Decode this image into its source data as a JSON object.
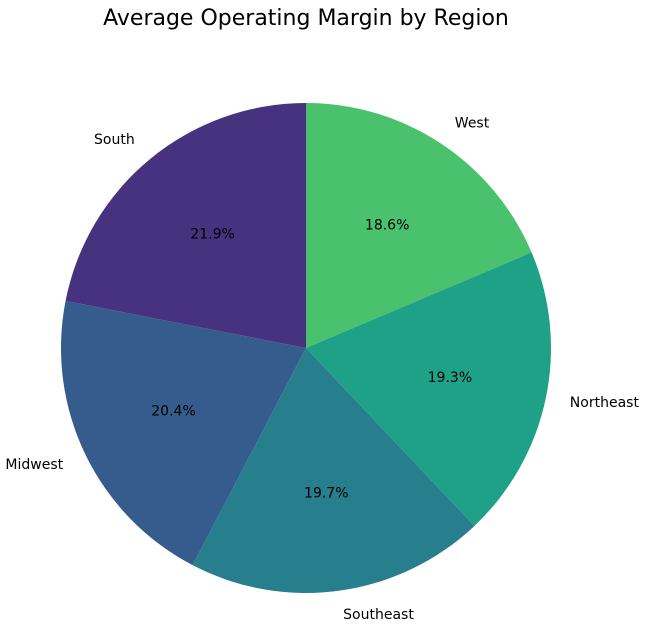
{
  "chart_data": {
    "type": "pie",
    "title": "Average Operating Margin by Region",
    "start_angle_deg": 90,
    "direction": "clockwise",
    "slices": [
      {
        "label": "West",
        "value": 18.6,
        "pct_label": "18.6%",
        "color": "#4ac16d"
      },
      {
        "label": "Northeast",
        "value": 19.3,
        "pct_label": "19.3%",
        "color": "#1fa187"
      },
      {
        "label": "Southeast",
        "value": 19.7,
        "pct_label": "19.7%",
        "color": "#277f8e"
      },
      {
        "label": "Midwest",
        "value": 20.4,
        "pct_label": "20.4%",
        "color": "#365c8d"
      },
      {
        "label": "South",
        "value": 21.9,
        "pct_label": "21.9%",
        "color": "#46327e"
      }
    ]
  }
}
